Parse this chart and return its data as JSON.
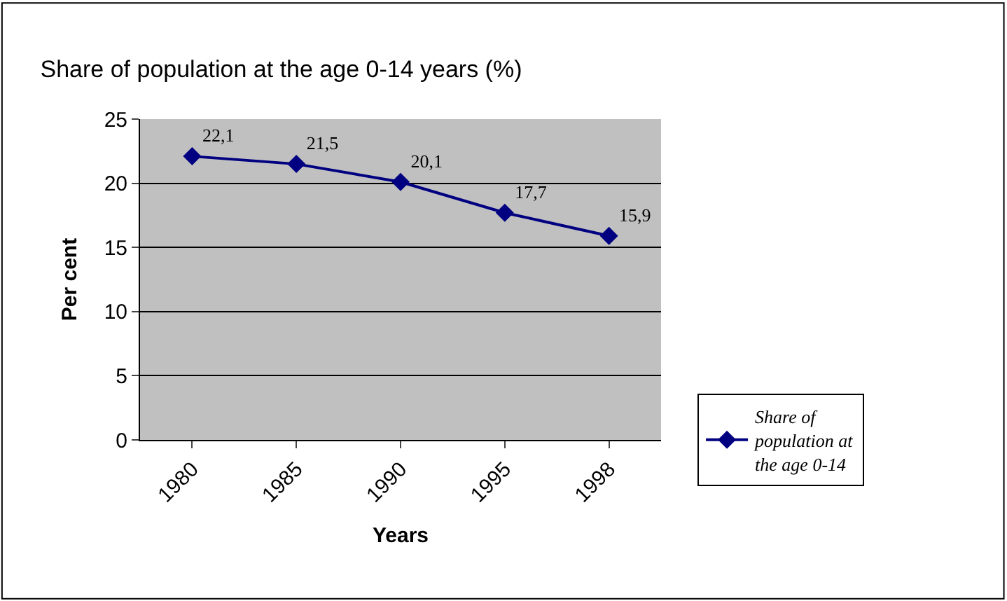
{
  "chart_data": {
    "type": "line",
    "title": "Share of population at the age 0-14 years (%)",
    "xlabel": "Years",
    "ylabel": "Per cent",
    "categories": [
      "1980",
      "1985",
      "1990",
      "1995",
      "1998"
    ],
    "series": [
      {
        "name": "Share of population at the age 0-14",
        "color": "#000080",
        "values": [
          22.1,
          21.5,
          20.1,
          17.7,
          15.9
        ],
        "value_labels": [
          "22,1",
          "21,5",
          "20,1",
          "17,7",
          "15,9"
        ]
      }
    ],
    "ylim": [
      0,
      25
    ],
    "yticks": [
      0,
      5,
      10,
      15,
      20,
      25
    ],
    "grid": "y",
    "legend": "bottom right",
    "marker": "diamond",
    "line_style": "solid"
  }
}
